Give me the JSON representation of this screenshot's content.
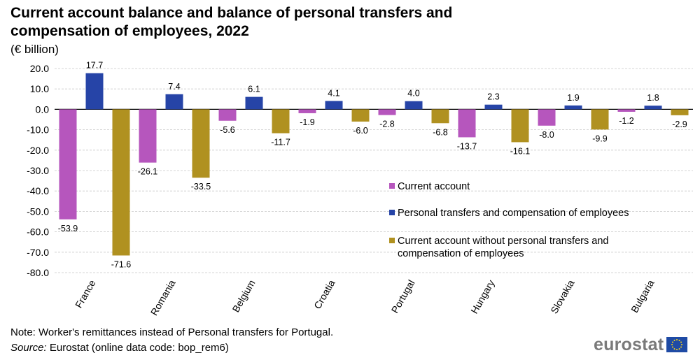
{
  "title": "Current account balance and balance of personal transfers and compensation of employees, 2022",
  "unit": "(€ billion)",
  "note": "Note: Worker's remittances instead of Personal transfers for Portugal.",
  "source_label": "Source:",
  "source_text": "Eurostat (online data code: bop_rem6)",
  "logo_text": "eurostat",
  "chart_data": {
    "type": "bar",
    "title": "Current account balance and balance of personal transfers and compensation of employees, 2022",
    "ylabel": "(€ billion)",
    "ylim": [
      -80,
      20
    ],
    "yticks": [
      20,
      10,
      0,
      -10,
      -20,
      -30,
      -40,
      -50,
      -60,
      -70,
      -80
    ],
    "ytick_labels": [
      "20.0",
      "10.0",
      "0.0",
      "-10.0",
      "-20.0",
      "-30.0",
      "-40.0",
      "-50.0",
      "-60.0",
      "-70.0",
      "-80.0"
    ],
    "grid": true,
    "legend_position": "right, lower middle",
    "categories": [
      "France",
      "Romania",
      "Belgium",
      "Croatia",
      "Portugal",
      "Hungary",
      "Slovakia",
      "Bulgaria"
    ],
    "series": [
      {
        "name": "Current account",
        "color": "#b656bd",
        "values": [
          -53.9,
          -26.1,
          -5.6,
          -1.9,
          -2.8,
          -13.7,
          -8.0,
          -1.2
        ],
        "labels": [
          "-53.9",
          "-26.1",
          "-5.6",
          "-1.9",
          "-2.8",
          "-13.7",
          "-8.0",
          "-1.2"
        ]
      },
      {
        "name": "Personal transfers and compensation of employees",
        "color": "#2644a7",
        "values": [
          17.7,
          7.4,
          6.1,
          4.1,
          4.0,
          2.3,
          1.9,
          1.8
        ],
        "labels": [
          "17.7",
          "7.4",
          "6.1",
          "4.1",
          "4.0",
          "2.3",
          "1.9",
          "1.8"
        ]
      },
      {
        "name": "Current account without personal transfers and compensation of employees",
        "color": "#b09120",
        "values": [
          -71.6,
          -33.5,
          -11.7,
          -6.0,
          -6.8,
          -16.1,
          -9.9,
          -2.9
        ],
        "labels": [
          "-71.6",
          "-33.5",
          "-11.7",
          "-6.0",
          "-6.8",
          "-16.1",
          "-9.9",
          "-2.9"
        ]
      }
    ]
  }
}
